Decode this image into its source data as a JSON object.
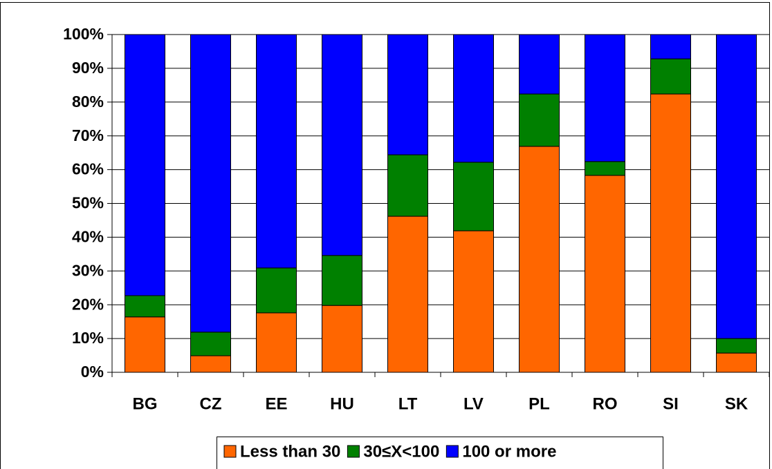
{
  "chart_data": {
    "type": "stacked-bar",
    "categories": [
      "BG",
      "CZ",
      "EE",
      "HU",
      "LT",
      "LV",
      "PL",
      "RO",
      "SI",
      "SK"
    ],
    "series": [
      {
        "name": "Less than 30",
        "color": "#ff6600",
        "values": [
          16.4,
          4.9,
          17.6,
          19.8,
          46.2,
          41.9,
          66.9,
          58.3,
          82.4,
          5.7
        ]
      },
      {
        "name": "30≤X<100",
        "color": "#008000",
        "values": [
          6.3,
          7.0,
          13.3,
          14.8,
          18.2,
          20.3,
          15.5,
          4.1,
          10.4,
          4.3
        ]
      },
      {
        "name": "100 or more",
        "color": "#0000ff",
        "values": [
          77.3,
          88.1,
          69.1,
          65.4,
          35.6,
          37.8,
          17.6,
          37.6,
          7.2,
          90.0
        ]
      }
    ],
    "ylim": [
      0,
      100
    ],
    "yticks": [
      {
        "value": 0,
        "label": "0%"
      },
      {
        "value": 10,
        "label": "10%"
      },
      {
        "value": 20,
        "label": "20%"
      },
      {
        "value": 30,
        "label": "30%"
      },
      {
        "value": 40,
        "label": "40%"
      },
      {
        "value": 50,
        "label": "50%"
      },
      {
        "value": 60,
        "label": "60%"
      },
      {
        "value": 70,
        "label": "70%"
      },
      {
        "value": 80,
        "label": "80%"
      },
      {
        "value": 90,
        "label": "90%"
      },
      {
        "value": 100,
        "label": "100%"
      }
    ],
    "grid": true,
    "legend": "bottom"
  }
}
